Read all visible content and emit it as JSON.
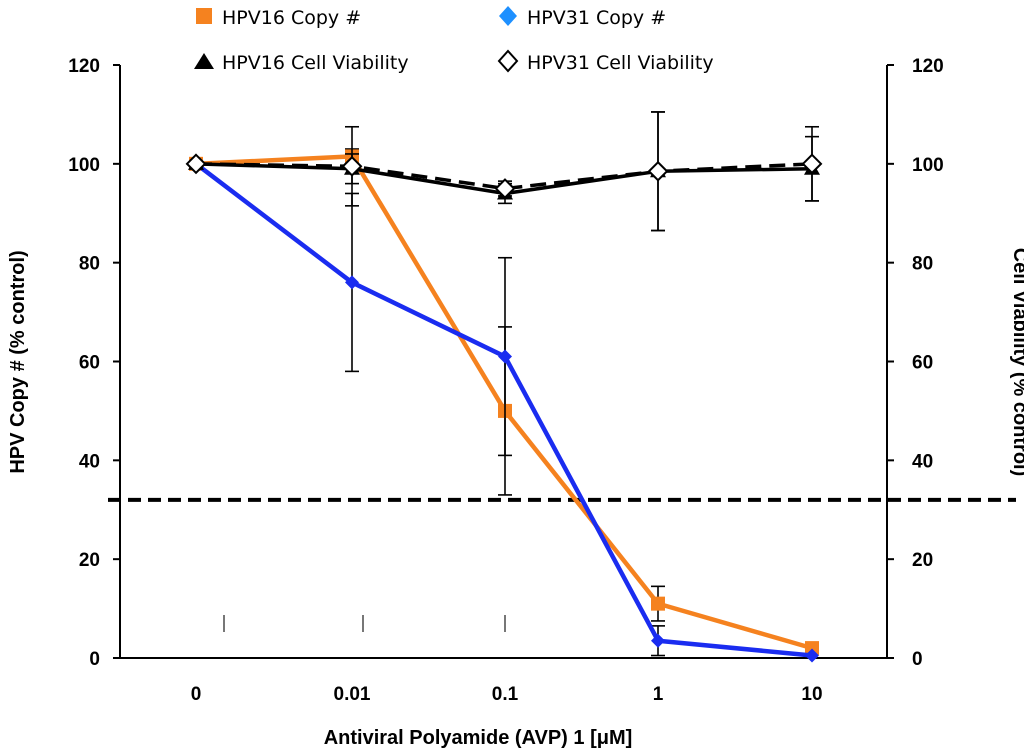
{
  "chart_data": {
    "type": "line",
    "categories": [
      "0",
      "0.01",
      "0.1",
      "1",
      "10"
    ],
    "xlabel": "Antiviral Polyamide (AVP) 1 [μM]",
    "ylabel": "HPV Copy # (% control)",
    "y2label": "Cell Viability (% control)",
    "ylim": [
      0,
      120
    ],
    "y2lim": [
      0,
      120
    ],
    "yticks": [
      "0",
      "20",
      "40",
      "60",
      "80",
      "100",
      "120"
    ],
    "y2ticks": [
      "0",
      "20",
      "40",
      "60",
      "80",
      "100",
      "120"
    ],
    "grid": false,
    "legend_position": "top",
    "threshold_line": {
      "value": 32,
      "style": "dashed",
      "color": "#000000"
    },
    "series": [
      {
        "name": "HPV16 Copy #",
        "axis": "left",
        "color": "#f5821f",
        "marker": "square",
        "values": [
          100,
          101.5,
          50,
          11,
          2
        ],
        "error": [
          0,
          1.5,
          17,
          3.5,
          0
        ]
      },
      {
        "name": "HPV31 Copy #",
        "axis": "left",
        "color": "#1a2cf0",
        "marker": "diamond",
        "legend_color": "#1e90ff",
        "values": [
          100,
          76,
          61,
          3.5,
          0.5
        ],
        "error": [
          0,
          18,
          20,
          3,
          0
        ]
      },
      {
        "name": "HPV16 Cell Viability",
        "axis": "right",
        "color": "#000000",
        "marker": "triangle",
        "values": [
          100,
          99,
          94,
          98.5,
          99
        ],
        "error": [
          0,
          3,
          2,
          12,
          6.5
        ]
      },
      {
        "name": "HPV31 Cell Viability",
        "axis": "right",
        "color": "#000000",
        "marker": "open-diamond",
        "dashed": true,
        "values": [
          100,
          99.5,
          95,
          98.5,
          100
        ],
        "error": [
          0,
          8,
          1.5,
          12,
          7.5
        ]
      }
    ]
  }
}
